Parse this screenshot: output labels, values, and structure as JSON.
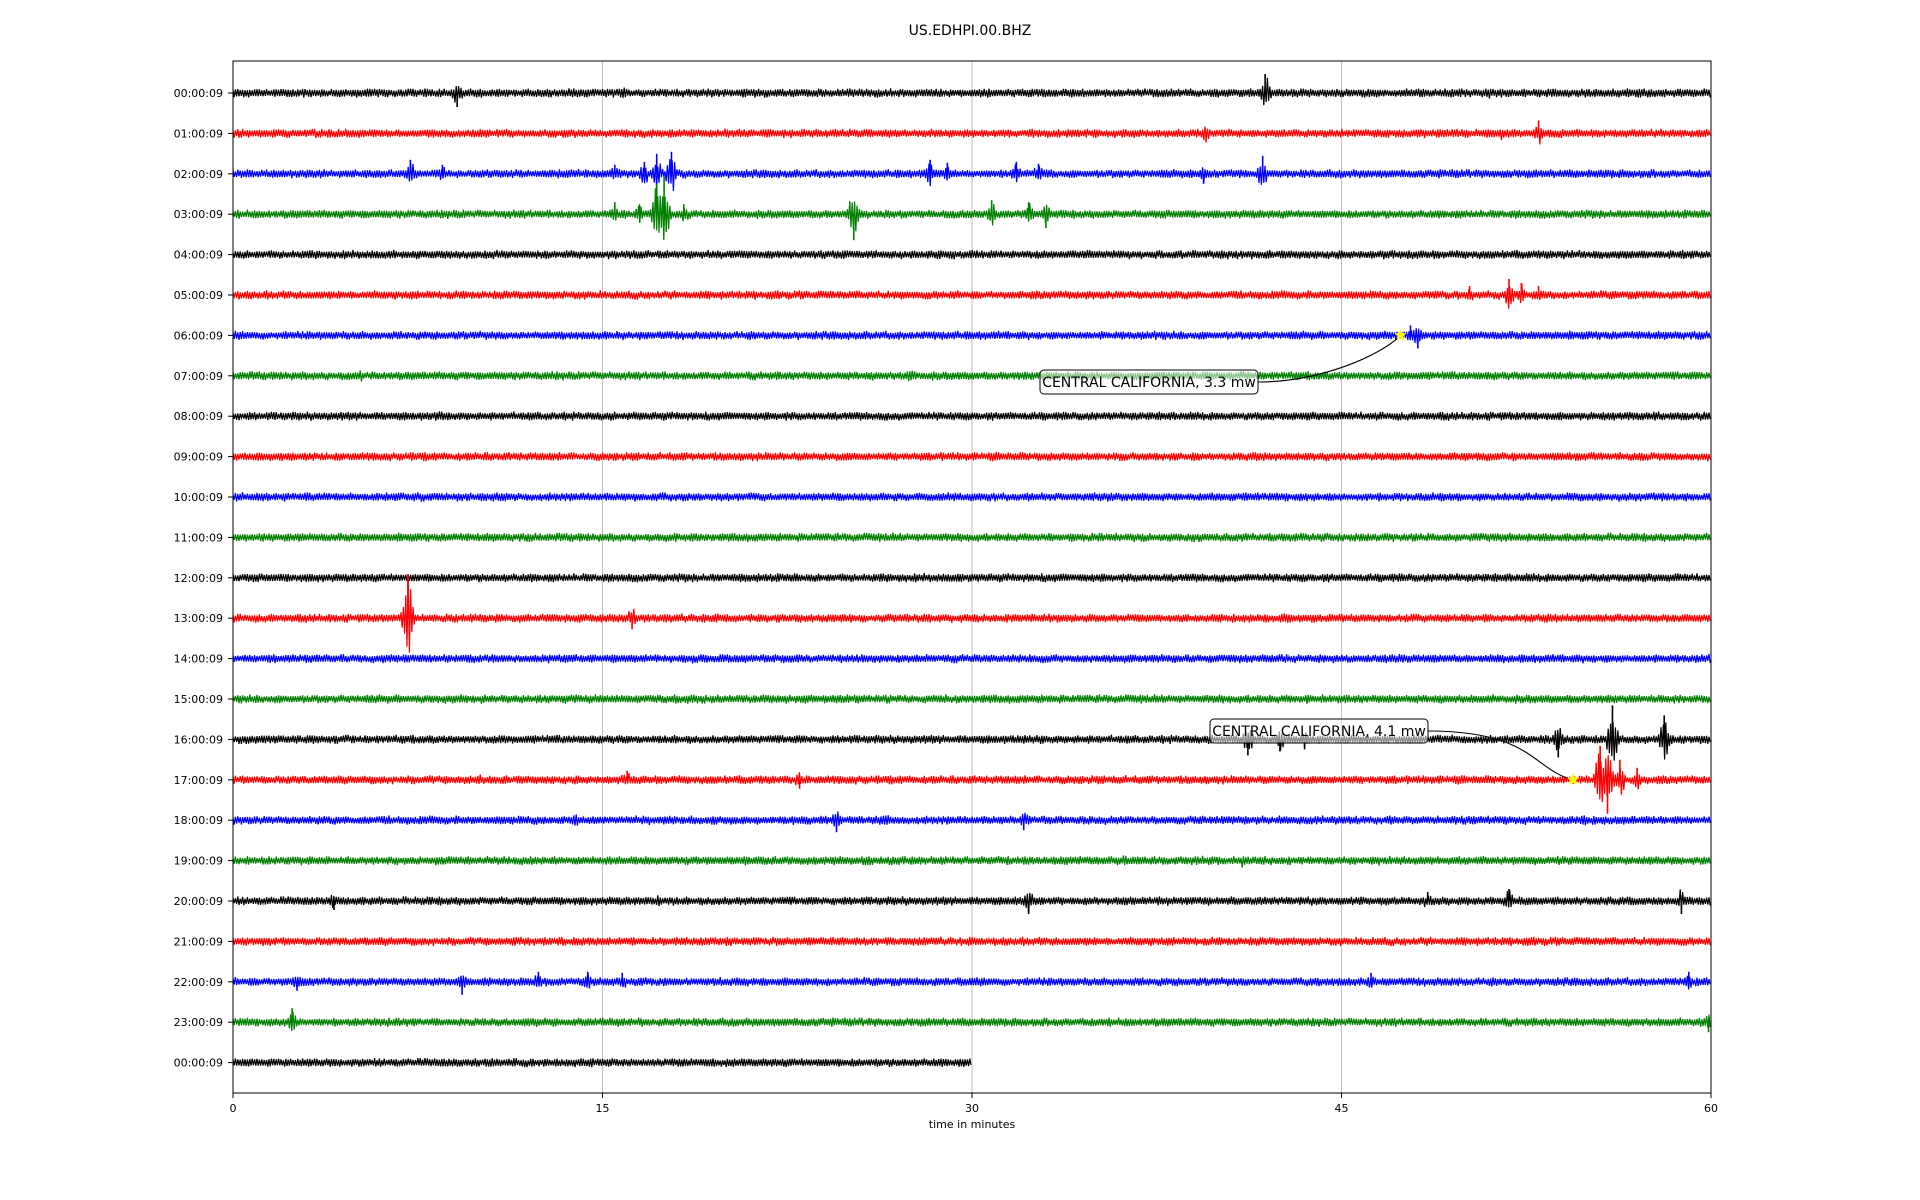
{
  "chart_data": {
    "type": "line",
    "title": "US.EDHPI.00.BHZ",
    "xlabel": "time in minutes",
    "ylabel": "",
    "xlim": [
      0,
      60
    ],
    "xticks": [
      "0",
      "15",
      "30",
      "45",
      "60"
    ],
    "grid": "vertical",
    "trace_colors": [
      "#000000",
      "#ff0000",
      "#0000ff",
      "#007f00"
    ],
    "traces": [
      {
        "label": "00:00:09",
        "end_min": 60,
        "spikes": [
          {
            "t": 9.1,
            "a": -14
          },
          {
            "t": 15.8,
            "a": 7
          },
          {
            "t": 41.9,
            "a": 19
          },
          {
            "t": 51.0,
            "a": 6
          }
        ]
      },
      {
        "label": "01:00:09",
        "end_min": 60,
        "spikes": [
          {
            "t": 39.5,
            "a": -9
          },
          {
            "t": 49.5,
            "a": 7
          },
          {
            "t": 51.5,
            "a": 8
          },
          {
            "t": 53.0,
            "a": 13
          }
        ]
      },
      {
        "label": "02:00:09",
        "end_min": 60,
        "spikes": [
          {
            "t": 7.2,
            "a": 14
          },
          {
            "t": 8.5,
            "a": 9
          },
          {
            "t": 15.5,
            "a": 9
          },
          {
            "t": 16.7,
            "a": 12
          },
          {
            "t": 17.2,
            "a": 20
          },
          {
            "t": 17.8,
            "a": 22
          },
          {
            "t": 28.3,
            "a": 14
          },
          {
            "t": 29.0,
            "a": 11
          },
          {
            "t": 31.8,
            "a": 12
          },
          {
            "t": 32.7,
            "a": 10
          },
          {
            "t": 39.4,
            "a": -10
          },
          {
            "t": 41.8,
            "a": 18
          }
        ]
      },
      {
        "label": "03:00:09",
        "end_min": 60,
        "spikes": [
          {
            "t": 15.5,
            "a": 12
          },
          {
            "t": 16.5,
            "a": 10
          },
          {
            "t": 17.2,
            "a": 30
          },
          {
            "t": 17.5,
            "a": 38
          },
          {
            "t": 18.3,
            "a": 10
          },
          {
            "t": 25.2,
            "a": -26
          },
          {
            "t": 30.8,
            "a": 14
          },
          {
            "t": 32.3,
            "a": 12
          },
          {
            "t": 33.0,
            "a": -14
          }
        ]
      },
      {
        "label": "04:00:09",
        "end_min": 60,
        "spikes": []
      },
      {
        "label": "05:00:09",
        "end_min": 60,
        "spikes": [
          {
            "t": 50.2,
            "a": 9
          },
          {
            "t": 51.8,
            "a": 16
          },
          {
            "t": 52.3,
            "a": 12
          },
          {
            "t": 53.0,
            "a": 9
          }
        ]
      },
      {
        "label": "06:00:09",
        "end_min": 60,
        "spikes": [
          {
            "t": 12.5,
            "a": 5
          },
          {
            "t": 47.8,
            "a": 10
          },
          {
            "t": 48.1,
            "a": -13
          }
        ]
      },
      {
        "label": "07:00:09",
        "end_min": 60,
        "spikes": [
          {
            "t": 5.2,
            "a": 6
          },
          {
            "t": 27.5,
            "a": -8
          }
        ]
      },
      {
        "label": "08:00:09",
        "end_min": 60,
        "spikes": [
          {
            "t": 8.4,
            "a": -6
          }
        ]
      },
      {
        "label": "09:00:09",
        "end_min": 60,
        "spikes": [
          {
            "t": 49.7,
            "a": 5
          }
        ]
      },
      {
        "label": "10:00:09",
        "end_min": 60,
        "spikes": []
      },
      {
        "label": "11:00:09",
        "end_min": 60,
        "spikes": []
      },
      {
        "label": "12:00:09",
        "end_min": 60,
        "spikes": [
          {
            "t": 29.9,
            "a": 6
          }
        ]
      },
      {
        "label": "13:00:09",
        "end_min": 60,
        "spikes": [
          {
            "t": 7.1,
            "a": 44
          },
          {
            "t": 16.2,
            "a": -11
          },
          {
            "t": 17.5,
            "a": 6
          }
        ]
      },
      {
        "label": "14:00:09",
        "end_min": 60,
        "spikes": [
          {
            "t": 22.5,
            "a": -6
          },
          {
            "t": 51.5,
            "a": 5
          }
        ]
      },
      {
        "label": "15:00:09",
        "end_min": 60,
        "spikes": [
          {
            "t": 29.0,
            "a": 5
          },
          {
            "t": 44.0,
            "a": 5
          }
        ]
      },
      {
        "label": "16:00:09",
        "end_min": 60,
        "spikes": [
          {
            "t": 41.2,
            "a": -16
          },
          {
            "t": 42.5,
            "a": -12
          },
          {
            "t": 43.5,
            "a": -10
          },
          {
            "t": 53.8,
            "a": -18
          },
          {
            "t": 56.0,
            "a": 34
          },
          {
            "t": 58.1,
            "a": 24
          }
        ]
      },
      {
        "label": "17:00:09",
        "end_min": 60,
        "spikes": [
          {
            "t": 10.0,
            "a": 7
          },
          {
            "t": 16.0,
            "a": 9
          },
          {
            "t": 23.0,
            "a": -9
          },
          {
            "t": 55.5,
            "a": 34
          },
          {
            "t": 55.8,
            "a": -34
          },
          {
            "t": 56.3,
            "a": 20
          },
          {
            "t": 57.0,
            "a": 12
          }
        ]
      },
      {
        "label": "18:00:09",
        "end_min": 60,
        "spikes": [
          {
            "t": 13.9,
            "a": 7
          },
          {
            "t": 24.5,
            "a": -12
          },
          {
            "t": 26.5,
            "a": 7
          },
          {
            "t": 32.1,
            "a": -10
          },
          {
            "t": 54.8,
            "a": -8
          }
        ]
      },
      {
        "label": "19:00:09",
        "end_min": 60,
        "spikes": [
          {
            "t": 25.8,
            "a": 6
          },
          {
            "t": 36.2,
            "a": 6
          },
          {
            "t": 41.0,
            "a": -8
          },
          {
            "t": 46.5,
            "a": 6
          }
        ]
      },
      {
        "label": "20:00:09",
        "end_min": 60,
        "spikes": [
          {
            "t": 4.1,
            "a": -9
          },
          {
            "t": 17.3,
            "a": 7
          },
          {
            "t": 32.3,
            "a": -13
          },
          {
            "t": 48.5,
            "a": 9
          },
          {
            "t": 51.8,
            "a": 12
          },
          {
            "t": 58.8,
            "a": -13
          }
        ]
      },
      {
        "label": "21:00:09",
        "end_min": 60,
        "spikes": [
          {
            "t": 30.0,
            "a": 5
          }
        ]
      },
      {
        "label": "22:00:09",
        "end_min": 60,
        "spikes": [
          {
            "t": 2.6,
            "a": -9
          },
          {
            "t": 9.3,
            "a": -13
          },
          {
            "t": 12.4,
            "a": 10
          },
          {
            "t": 14.4,
            "a": 10
          },
          {
            "t": 15.8,
            "a": 9
          },
          {
            "t": 46.2,
            "a": 9
          },
          {
            "t": 59.1,
            "a": 10
          }
        ]
      },
      {
        "label": "23:00:09",
        "end_min": 60,
        "spikes": [
          {
            "t": 2.4,
            "a": 14
          },
          {
            "t": 59.9,
            "a": -10
          }
        ]
      },
      {
        "label": "00:00:09",
        "end_min": 30,
        "spikes": [
          {
            "t": 20.8,
            "a": -6
          }
        ]
      }
    ],
    "annotations": [
      {
        "text": "CENTRAL CALIFORNIA, 3.3 mw",
        "trace": 6,
        "t": 47.4
      },
      {
        "text": "CENTRAL CALIFORNIA, 4.1 mw",
        "trace": 17,
        "t": 54.4
      }
    ],
    "annotation_marker_color": "#ffff00"
  }
}
